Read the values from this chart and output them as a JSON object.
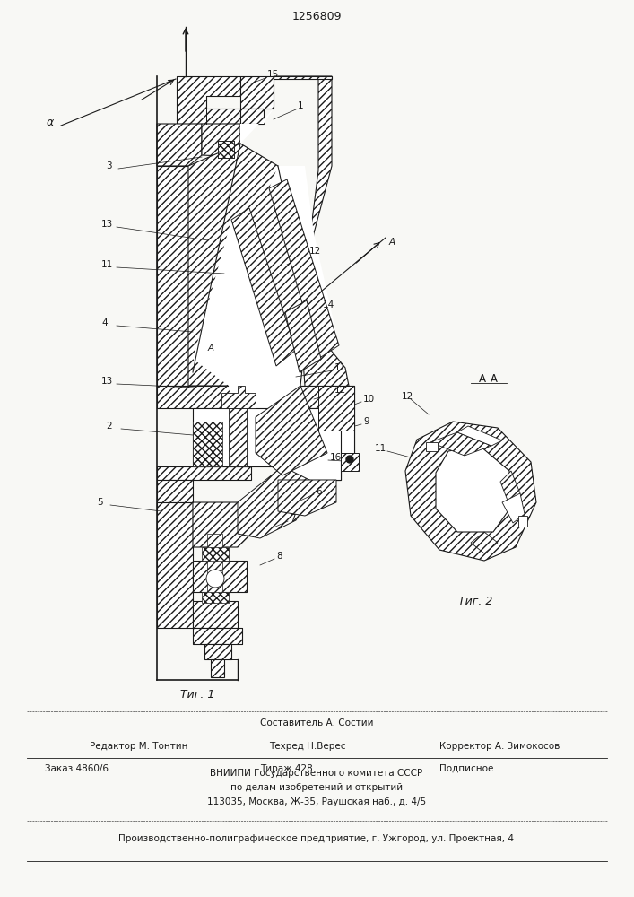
{
  "title": "1256809",
  "fig1_label": "Τиг. 1",
  "fig2_label": "Τиг. 2",
  "section_label": "A–A",
  "alpha_label": "α",
  "editor_line": "Редактор М. Тонтин",
  "composer_line": "Составитель А. Состии",
  "techred_line": "Техред Н.Верес",
  "corrector_line": "Корректор А. Зимокосов",
  "order_line": "Заказ 4860/6",
  "tirazh_line": "Тираж 428",
  "podpisnoe_line": "Подписное",
  "vniip_line1": "ВНИИПИ Государственного комитета СССР",
  "vniip_line2": "по делам изобретений и открытий",
  "vniip_line3": "113035, Москва, Ж-35, Раушская наб., д. 4/5",
  "production_line": "Производственно-полиграфическое предприятие, г. Ужгород, ул. Проектная, 4",
  "bg_color": "#f8f8f5",
  "line_color": "#1a1a1a"
}
